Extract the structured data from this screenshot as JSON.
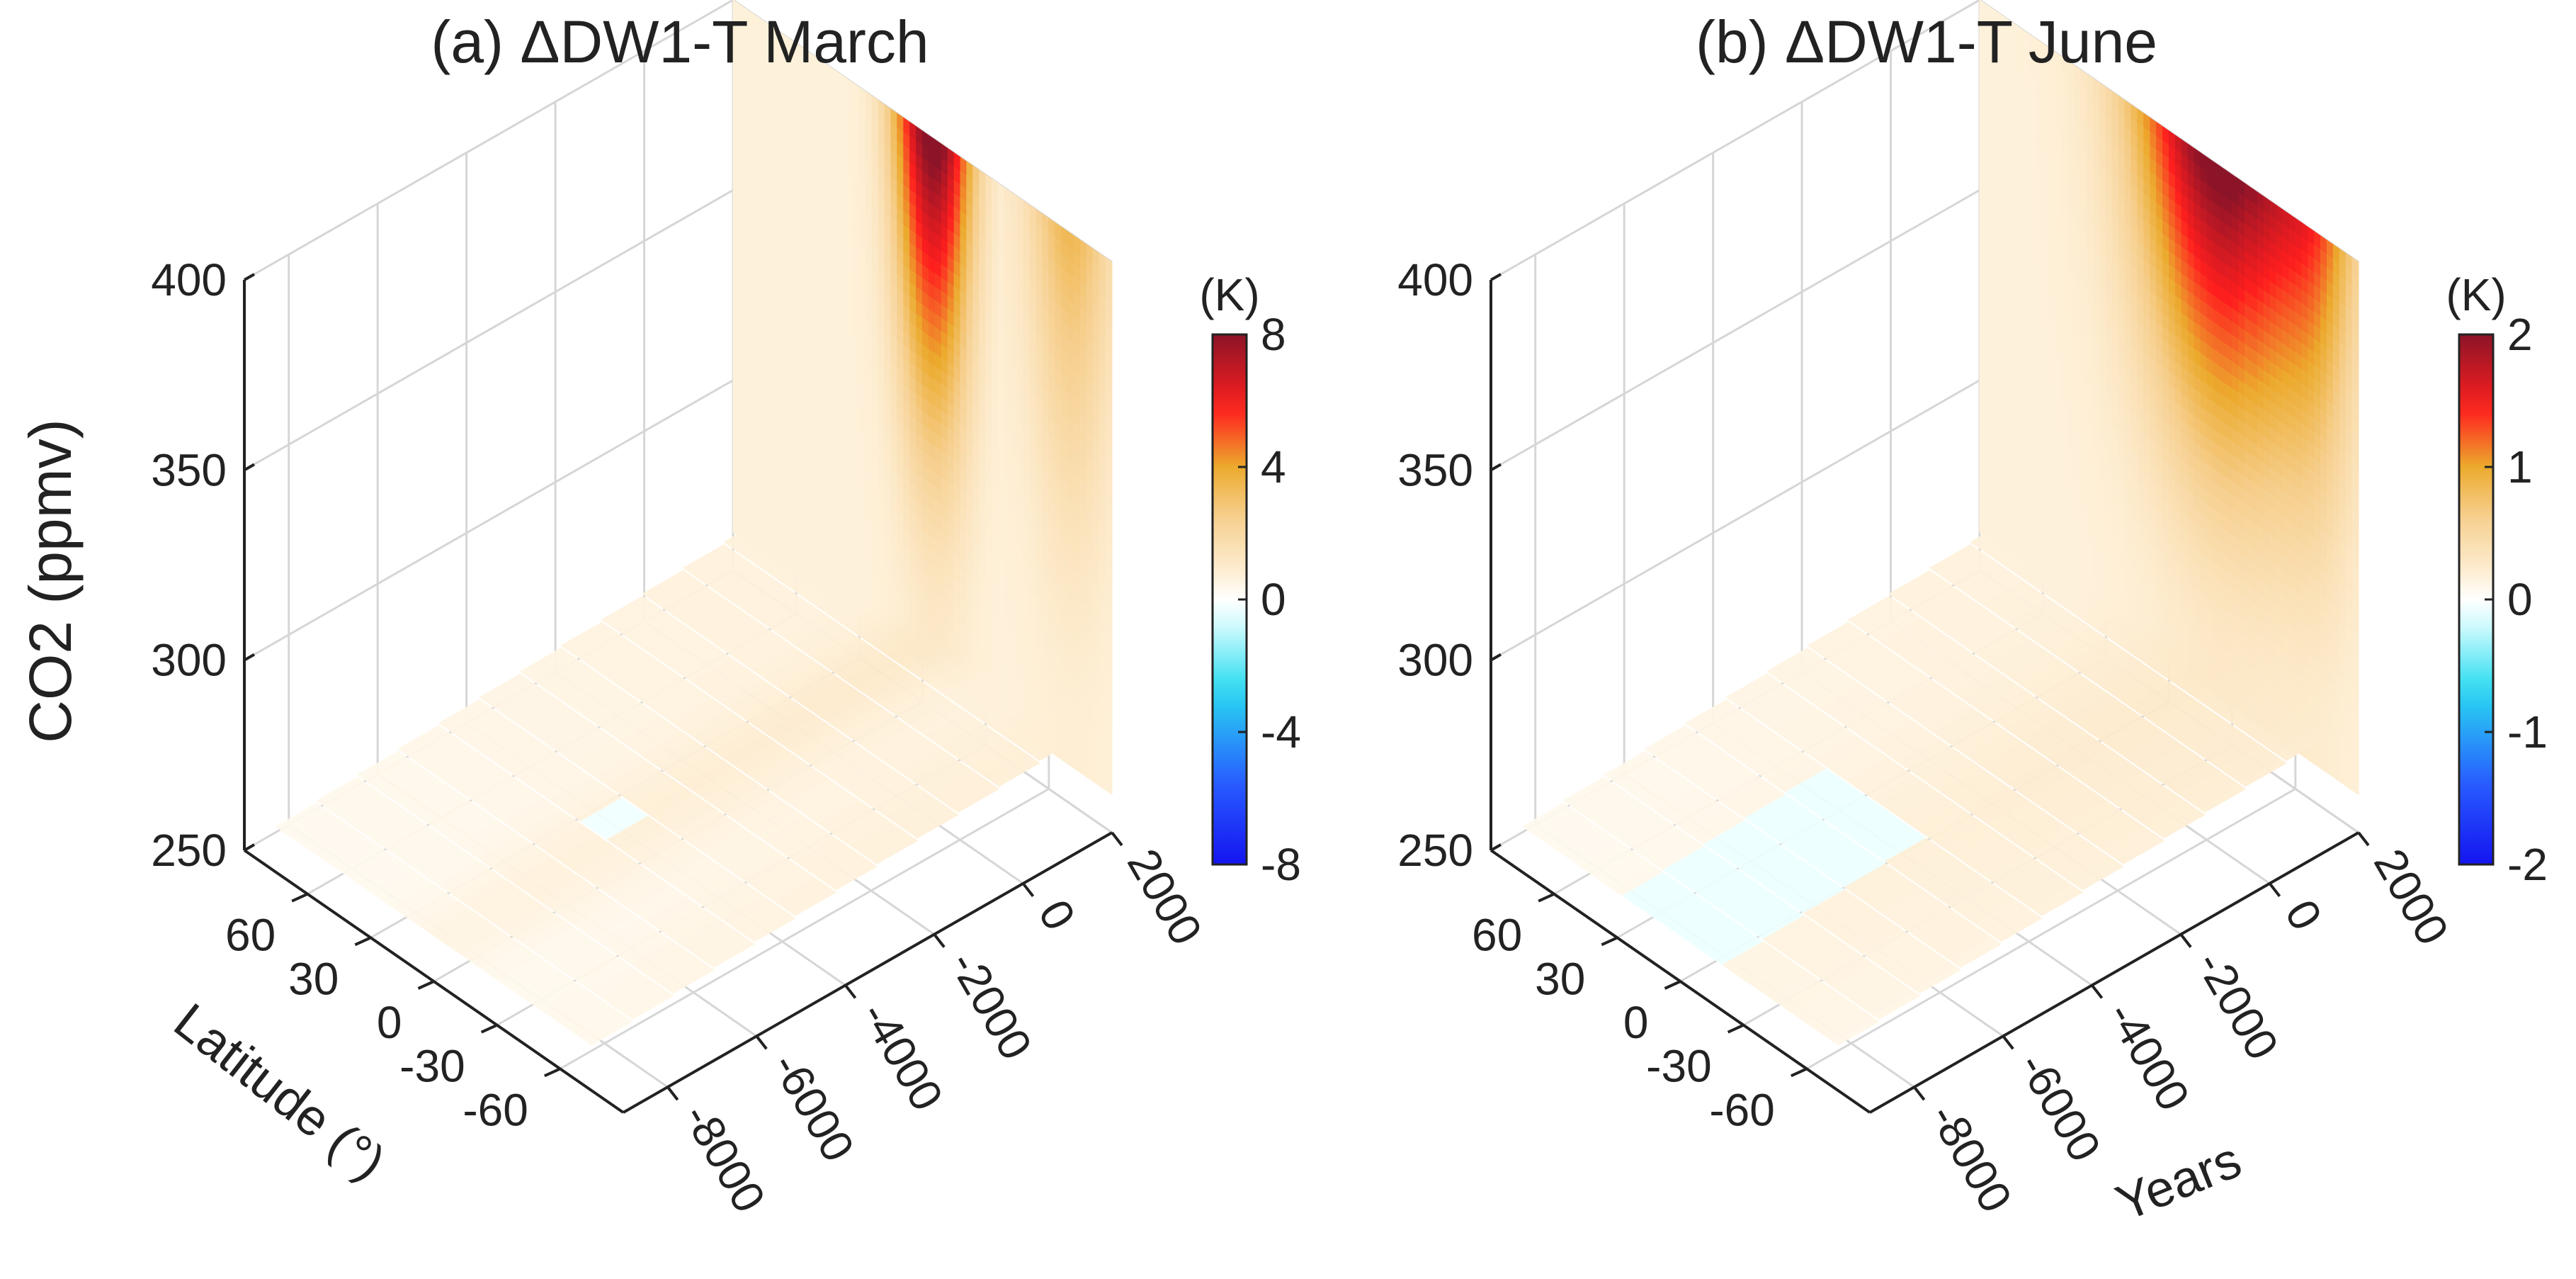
{
  "chart_data": [
    {
      "type": "heatmap",
      "title": "(a) ΔDW1-T March",
      "zlabel": "CO2 (ppmv)",
      "ylabel": "Latitude (°)",
      "xlabel": "",
      "z_ticks": [
        "250",
        "300",
        "350",
        "400"
      ],
      "lat_ticks": [
        "60",
        "30",
        "0",
        "-30",
        "-60"
      ],
      "year_ticks": [
        "-8000",
        "-6000",
        "-4000",
        "-2000",
        "0",
        "2000"
      ],
      "colorbar": {
        "label": "(K)",
        "ticks": [
          "8",
          "4",
          "0",
          "-4",
          "-8"
        ],
        "range": [
          -8,
          8
        ]
      },
      "peak_value": 8,
      "peak_latitude": -5,
      "peak_width_deg": 18,
      "lat_range": [
        -90,
        90
      ],
      "year_range": [
        -9000,
        2000
      ],
      "co2_range": [
        250,
        400
      ]
    },
    {
      "type": "heatmap",
      "title": "(b) ΔDW1-T June",
      "zlabel": "",
      "ylabel": "",
      "xlabel": "Years",
      "z_ticks": [
        "250",
        "300",
        "350",
        "400"
      ],
      "lat_ticks": [
        "60",
        "30",
        "0",
        "-30",
        "-60"
      ],
      "year_ticks": [
        "-8000",
        "-6000",
        "-4000",
        "-2000",
        "0",
        "2000"
      ],
      "colorbar": {
        "label": "(K)",
        "ticks": [
          "2",
          "1",
          "0",
          "-1",
          "-2"
        ],
        "range": [
          -2,
          2
        ]
      },
      "peak_value": 2,
      "peak_latitude": -25,
      "peak_width_deg": 40,
      "lat_range": [
        -90,
        90
      ],
      "year_range": [
        -9000,
        2000
      ],
      "co2_range": [
        250,
        400
      ]
    }
  ]
}
